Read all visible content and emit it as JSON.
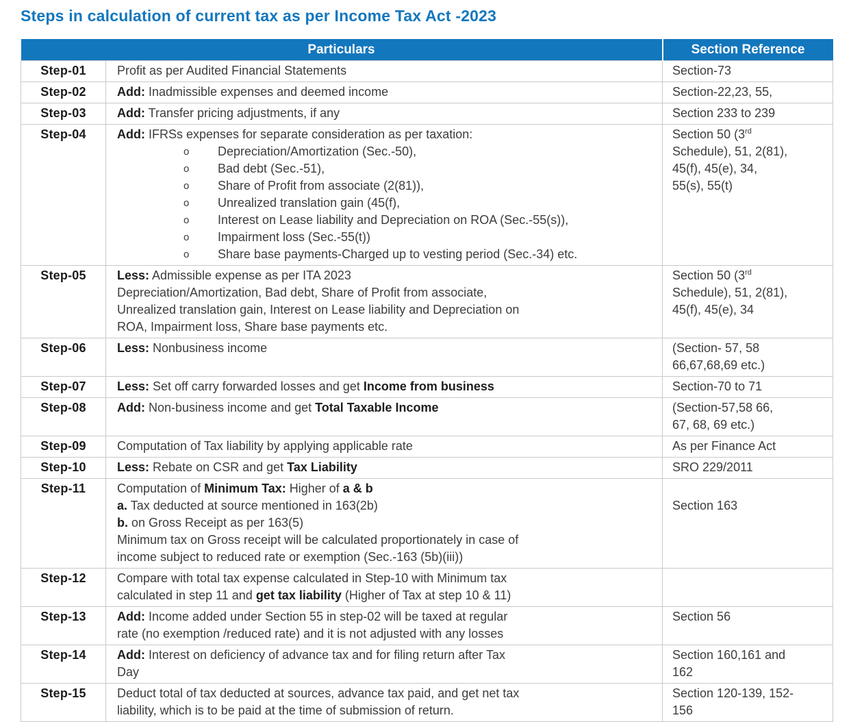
{
  "title": "Steps in calculation of current tax as per Income Tax Act -2023",
  "colors": {
    "header_bg": "#1377bd",
    "title_color": "#1377bd",
    "border": "#c9c9c9",
    "text": "#3d3d3d",
    "step": "#1c1c1c",
    "header_text": "#ffffff"
  },
  "table": {
    "headers": {
      "particulars": "Particulars",
      "section_reference": "Section Reference"
    },
    "bullet_marker": "o",
    "rows": [
      {
        "step": "Step-01",
        "lines": [
          [
            {
              "t": "Profit as per Audited Financial Statements"
            }
          ]
        ],
        "ref": [
          [
            {
              "t": "Section-73"
            }
          ]
        ]
      },
      {
        "step": "Step-02",
        "lines": [
          [
            {
              "t": "Add:",
              "b": 1
            },
            {
              "t": " Inadmissible expenses and deemed income"
            }
          ]
        ],
        "ref": [
          [
            {
              "t": "Section-22,23, 55,"
            }
          ]
        ]
      },
      {
        "step": "Step-03",
        "lines": [
          [
            {
              "t": "Add:",
              "b": 1
            },
            {
              "t": " Transfer pricing adjustments, if any"
            }
          ]
        ],
        "ref": [
          [
            {
              "t": "Section 233 to 239"
            }
          ]
        ]
      },
      {
        "step": "Step-04",
        "lines": [
          [
            {
              "t": "Add:",
              "b": 1
            },
            {
              "t": " IFRSs expenses for separate consideration as per taxation:"
            }
          ]
        ],
        "bullets": [
          "Depreciation/Amortization (Sec.-50),",
          "Bad debt (Sec.-51),",
          "Share of Profit from associate (2(81)),",
          "Unrealized translation gain (45(f),",
          "Interest on Lease liability and Depreciation on ROA (Sec.-55(s)),",
          "Impairment loss (Sec.-55(t))",
          "Share base payments-Charged up to vesting period (Sec.-34) etc."
        ],
        "ref": [
          [
            {
              "t": "Section 50 (3"
            },
            {
              "t": "rd",
              "sup": 1
            }
          ],
          [
            {
              "t": "Schedule), 51, 2(81),"
            }
          ],
          [
            {
              "t": "45(f), 45(e), 34,"
            }
          ],
          [
            {
              "t": "55(s), 55(t)"
            }
          ]
        ]
      },
      {
        "step": "Step-05",
        "lines": [
          [
            {
              "t": "Less:",
              "b": 1
            },
            {
              "t": " Admissible expense as per ITA 2023"
            }
          ],
          [
            {
              "t": "Depreciation/Amortization, Bad debt, Share of Profit from associate,"
            }
          ],
          [
            {
              "t": "Unrealized translation gain, Interest on Lease liability and Depreciation on"
            }
          ],
          [
            {
              "t": "ROA, Impairment loss, Share base payments etc."
            }
          ]
        ],
        "ref": [
          [
            {
              "t": "Section 50 (3"
            },
            {
              "t": "rd",
              "sup": 1
            }
          ],
          [
            {
              "t": "Schedule), 51, 2(81),"
            }
          ],
          [
            {
              "t": "45(f), 45(e), 34"
            }
          ]
        ]
      },
      {
        "step": "Step-06",
        "lines": [
          [
            {
              "t": "Less:",
              "b": 1
            },
            {
              "t": " Nonbusiness income"
            }
          ]
        ],
        "ref": [
          [
            {
              "t": "(Section- 57, 58"
            }
          ],
          [
            {
              "t": "66,67,68,69 etc.)"
            }
          ]
        ]
      },
      {
        "step": "Step-07",
        "lines": [
          [
            {
              "t": "Less:",
              "b": 1
            },
            {
              "t": " Set off carry forwarded losses and get "
            },
            {
              "t": "Income from business",
              "b": 1
            }
          ]
        ],
        "ref": [
          [
            {
              "t": "Section-70 to 71"
            }
          ]
        ]
      },
      {
        "step": "Step-08",
        "lines": [
          [
            {
              "t": "Add:",
              "b": 1
            },
            {
              "t": " Non-business income and get "
            },
            {
              "t": "Total Taxable Income",
              "b": 1
            }
          ]
        ],
        "ref": [
          [
            {
              "t": "(Section-57,58 66,"
            }
          ],
          [
            {
              "t": "67, 68, 69 etc.)"
            }
          ]
        ]
      },
      {
        "step": "Step-09",
        "lines": [
          [
            {
              "t": "Computation of Tax liability by applying applicable rate"
            }
          ]
        ],
        "ref": [
          [
            {
              "t": "As per Finance Act"
            }
          ]
        ]
      },
      {
        "step": "Step-10",
        "lines": [
          [
            {
              "t": "Less:",
              "b": 1
            },
            {
              "t": " Rebate on CSR and get "
            },
            {
              "t": "Tax Liability",
              "b": 1
            }
          ]
        ],
        "ref": [
          [
            {
              "t": "SRO 229/2011"
            }
          ]
        ]
      },
      {
        "step": "Step-11",
        "lines": [
          [
            {
              "t": "Computation of "
            },
            {
              "t": "Minimum Tax:",
              "b": 1
            },
            {
              "t": " Higher of "
            },
            {
              "t": "a & b",
              "b": 1
            }
          ],
          [
            {
              "t": "a.",
              "b": 1
            },
            {
              "t": " Tax deducted at source mentioned in 163(2b)"
            }
          ],
          [
            {
              "t": "b.",
              "b": 1
            },
            {
              "t": " on Gross Receipt as per 163(5)"
            }
          ],
          [
            {
              "t": "Minimum tax on Gross receipt will be calculated proportionately in case of"
            }
          ],
          [
            {
              "t": "income subject to reduced rate or exemption (Sec.-163 (5b)(iii))"
            }
          ]
        ],
        "ref": [
          [
            {
              "t": "Section 163"
            }
          ]
        ]
      },
      {
        "step": "Step-12",
        "lines": [
          [
            {
              "t": "Compare with total tax expense calculated in Step-10 with Minimum tax"
            }
          ],
          [
            {
              "t": "calculated in step 11 and "
            },
            {
              "t": "get tax liability",
              "b": 1
            },
            {
              "t": " (Higher of Tax at step 10 & 11)"
            }
          ]
        ],
        "ref": []
      },
      {
        "step": "Step-13",
        "lines": [
          [
            {
              "t": "Add:",
              "b": 1
            },
            {
              "t": " Income added under Section 55 in step-02 will be taxed at regular"
            }
          ],
          [
            {
              "t": "rate (no exemption /reduced rate) and it is not adjusted with any losses"
            }
          ]
        ],
        "ref": [
          [
            {
              "t": "Section 56"
            }
          ]
        ]
      },
      {
        "step": "Step-14",
        "lines": [
          [
            {
              "t": "Add:",
              "b": 1
            },
            {
              "t": " Interest on deficiency of advance tax and for filing return after Tax"
            }
          ],
          [
            {
              "t": "Day"
            }
          ]
        ],
        "ref": [
          [
            {
              "t": "Section 160,161 and"
            }
          ],
          [
            {
              "t": "162"
            }
          ]
        ]
      },
      {
        "step": "Step-15",
        "lines": [
          [
            {
              "t": "Deduct total of tax deducted at sources, advance tax paid, and get net tax"
            }
          ],
          [
            {
              "t": "liability, which is to be paid at the time of submission of return."
            }
          ]
        ],
        "ref": [
          [
            {
              "t": "Section 120-139, 152-"
            }
          ],
          [
            {
              "t": "156"
            }
          ]
        ]
      }
    ]
  }
}
